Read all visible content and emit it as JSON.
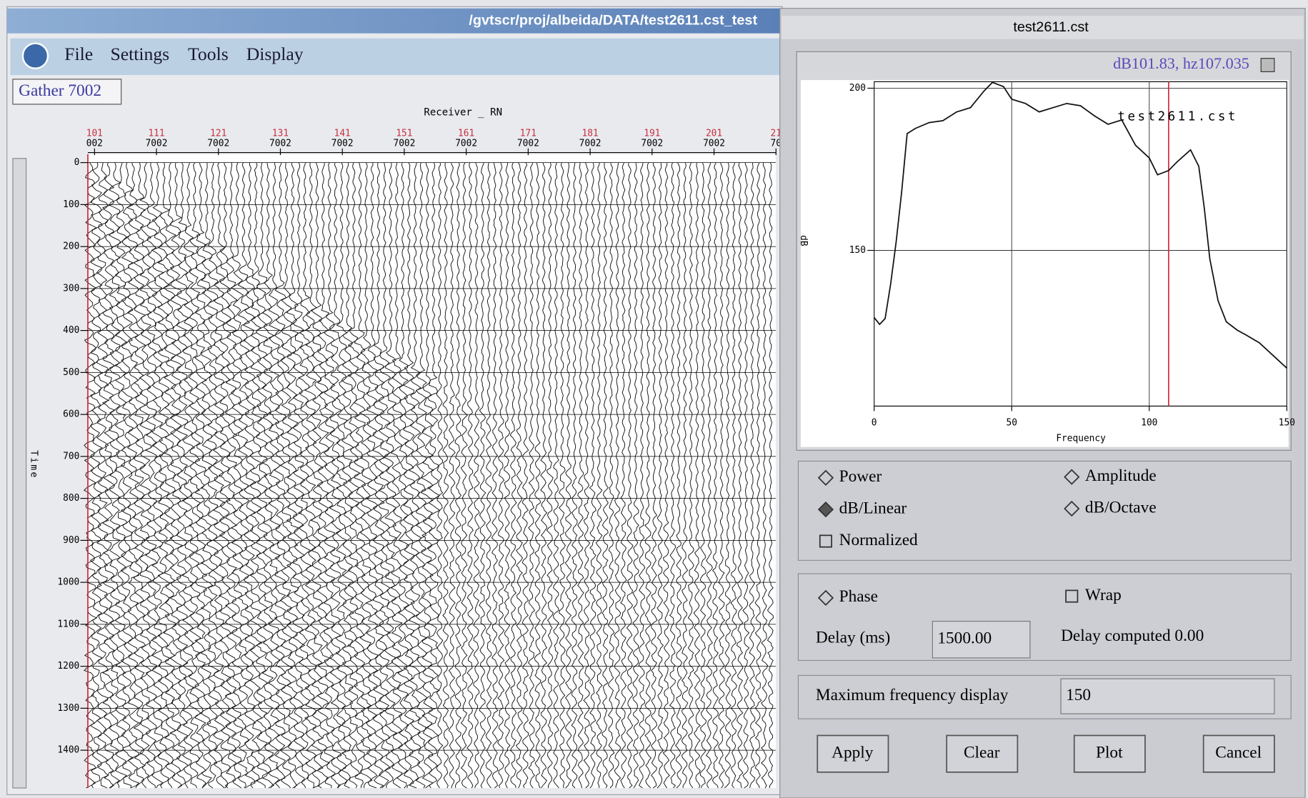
{
  "main_window": {
    "title": "/gvtscr/proj/albeida/DATA/test2611.cst_test",
    "menu": [
      "File",
      "Settings",
      "Tools",
      "Display"
    ],
    "gather_label": "Gather 7002"
  },
  "seismic": {
    "x_label": "Receiver _  RN",
    "x_ticks": [
      {
        "receiver": "101",
        "line": "002"
      },
      {
        "receiver": "111",
        "line": "7002"
      },
      {
        "receiver": "121",
        "line": "7002"
      },
      {
        "receiver": "131",
        "line": "7002"
      },
      {
        "receiver": "141",
        "line": "7002"
      },
      {
        "receiver": "151",
        "line": "7002"
      },
      {
        "receiver": "161",
        "line": "7002"
      },
      {
        "receiver": "171",
        "line": "7002"
      },
      {
        "receiver": "181",
        "line": "7002"
      },
      {
        "receiver": "191",
        "line": "7002"
      },
      {
        "receiver": "201",
        "line": "7002"
      },
      {
        "receiver": "21",
        "line": "70"
      }
    ],
    "y_label": "Time",
    "ylim": [
      0,
      1490
    ],
    "yticks": [
      0,
      100,
      200,
      300,
      400,
      500,
      600,
      700,
      800,
      900,
      1000,
      1100,
      1200,
      1300,
      1400
    ]
  },
  "chart_data": {
    "type": "line",
    "x_label": "Frequency",
    "y_label": "dB",
    "x": [
      0,
      2,
      4,
      6,
      8,
      10,
      12,
      15,
      20,
      25,
      30,
      35,
      40,
      43,
      47,
      50,
      55,
      60,
      65,
      70,
      75,
      80,
      85,
      90,
      95,
      100,
      103,
      107,
      110,
      115,
      118,
      120,
      122,
      125,
      128,
      132,
      135,
      140,
      145,
      150
    ],
    "series": [
      {
        "name": "test2611.cst",
        "color": "#111111",
        "values": [
          129.3,
          127.2,
          129,
          139.6,
          152.6,
          168,
          186,
          187.6,
          189.4,
          190,
          192.7,
          194,
          199.2,
          201.8,
          200.5,
          196.6,
          195.3,
          192.7,
          194,
          195.3,
          194.6,
          191.5,
          188.9,
          190.2,
          182.4,
          178.5,
          173.3,
          174.6,
          177.2,
          181,
          175.9,
          163,
          147.4,
          134.5,
          128,
          125.4,
          124,
          121.5,
          117.6,
          113.7
        ]
      }
    ],
    "xlim": [
      0,
      150
    ],
    "xticks": [
      0,
      50,
      100,
      150
    ],
    "ylim": [
      102,
      202
    ],
    "yticks": [
      150,
      200
    ],
    "grid": true,
    "cursor": 107.035,
    "cursor_color": "#d03040"
  },
  "dialog": {
    "title": "test2611.cst",
    "readout": "dB101.83, hz107.035",
    "options": [
      {
        "label": "Power",
        "kind": "radio",
        "selected": false
      },
      {
        "label": "Amplitude",
        "kind": "radio",
        "selected": false
      },
      {
        "label": "dB/Linear",
        "kind": "radio",
        "selected": true
      },
      {
        "label": "dB/Octave",
        "kind": "radio",
        "selected": false
      },
      {
        "label": "Normalized",
        "kind": "check",
        "selected": false
      }
    ],
    "phase_options": [
      {
        "label": "Phase",
        "kind": "radio",
        "selected": false
      },
      {
        "label": "Wrap",
        "kind": "check",
        "selected": false
      }
    ],
    "delay_label": "Delay (ms)",
    "delay_value": "1500.00",
    "delay_computed": "Delay computed 0.00",
    "max_freq_label": "Maximum frequency display",
    "max_freq_value": "150",
    "buttons": [
      "Apply",
      "Clear",
      "Plot",
      "Cancel"
    ]
  }
}
